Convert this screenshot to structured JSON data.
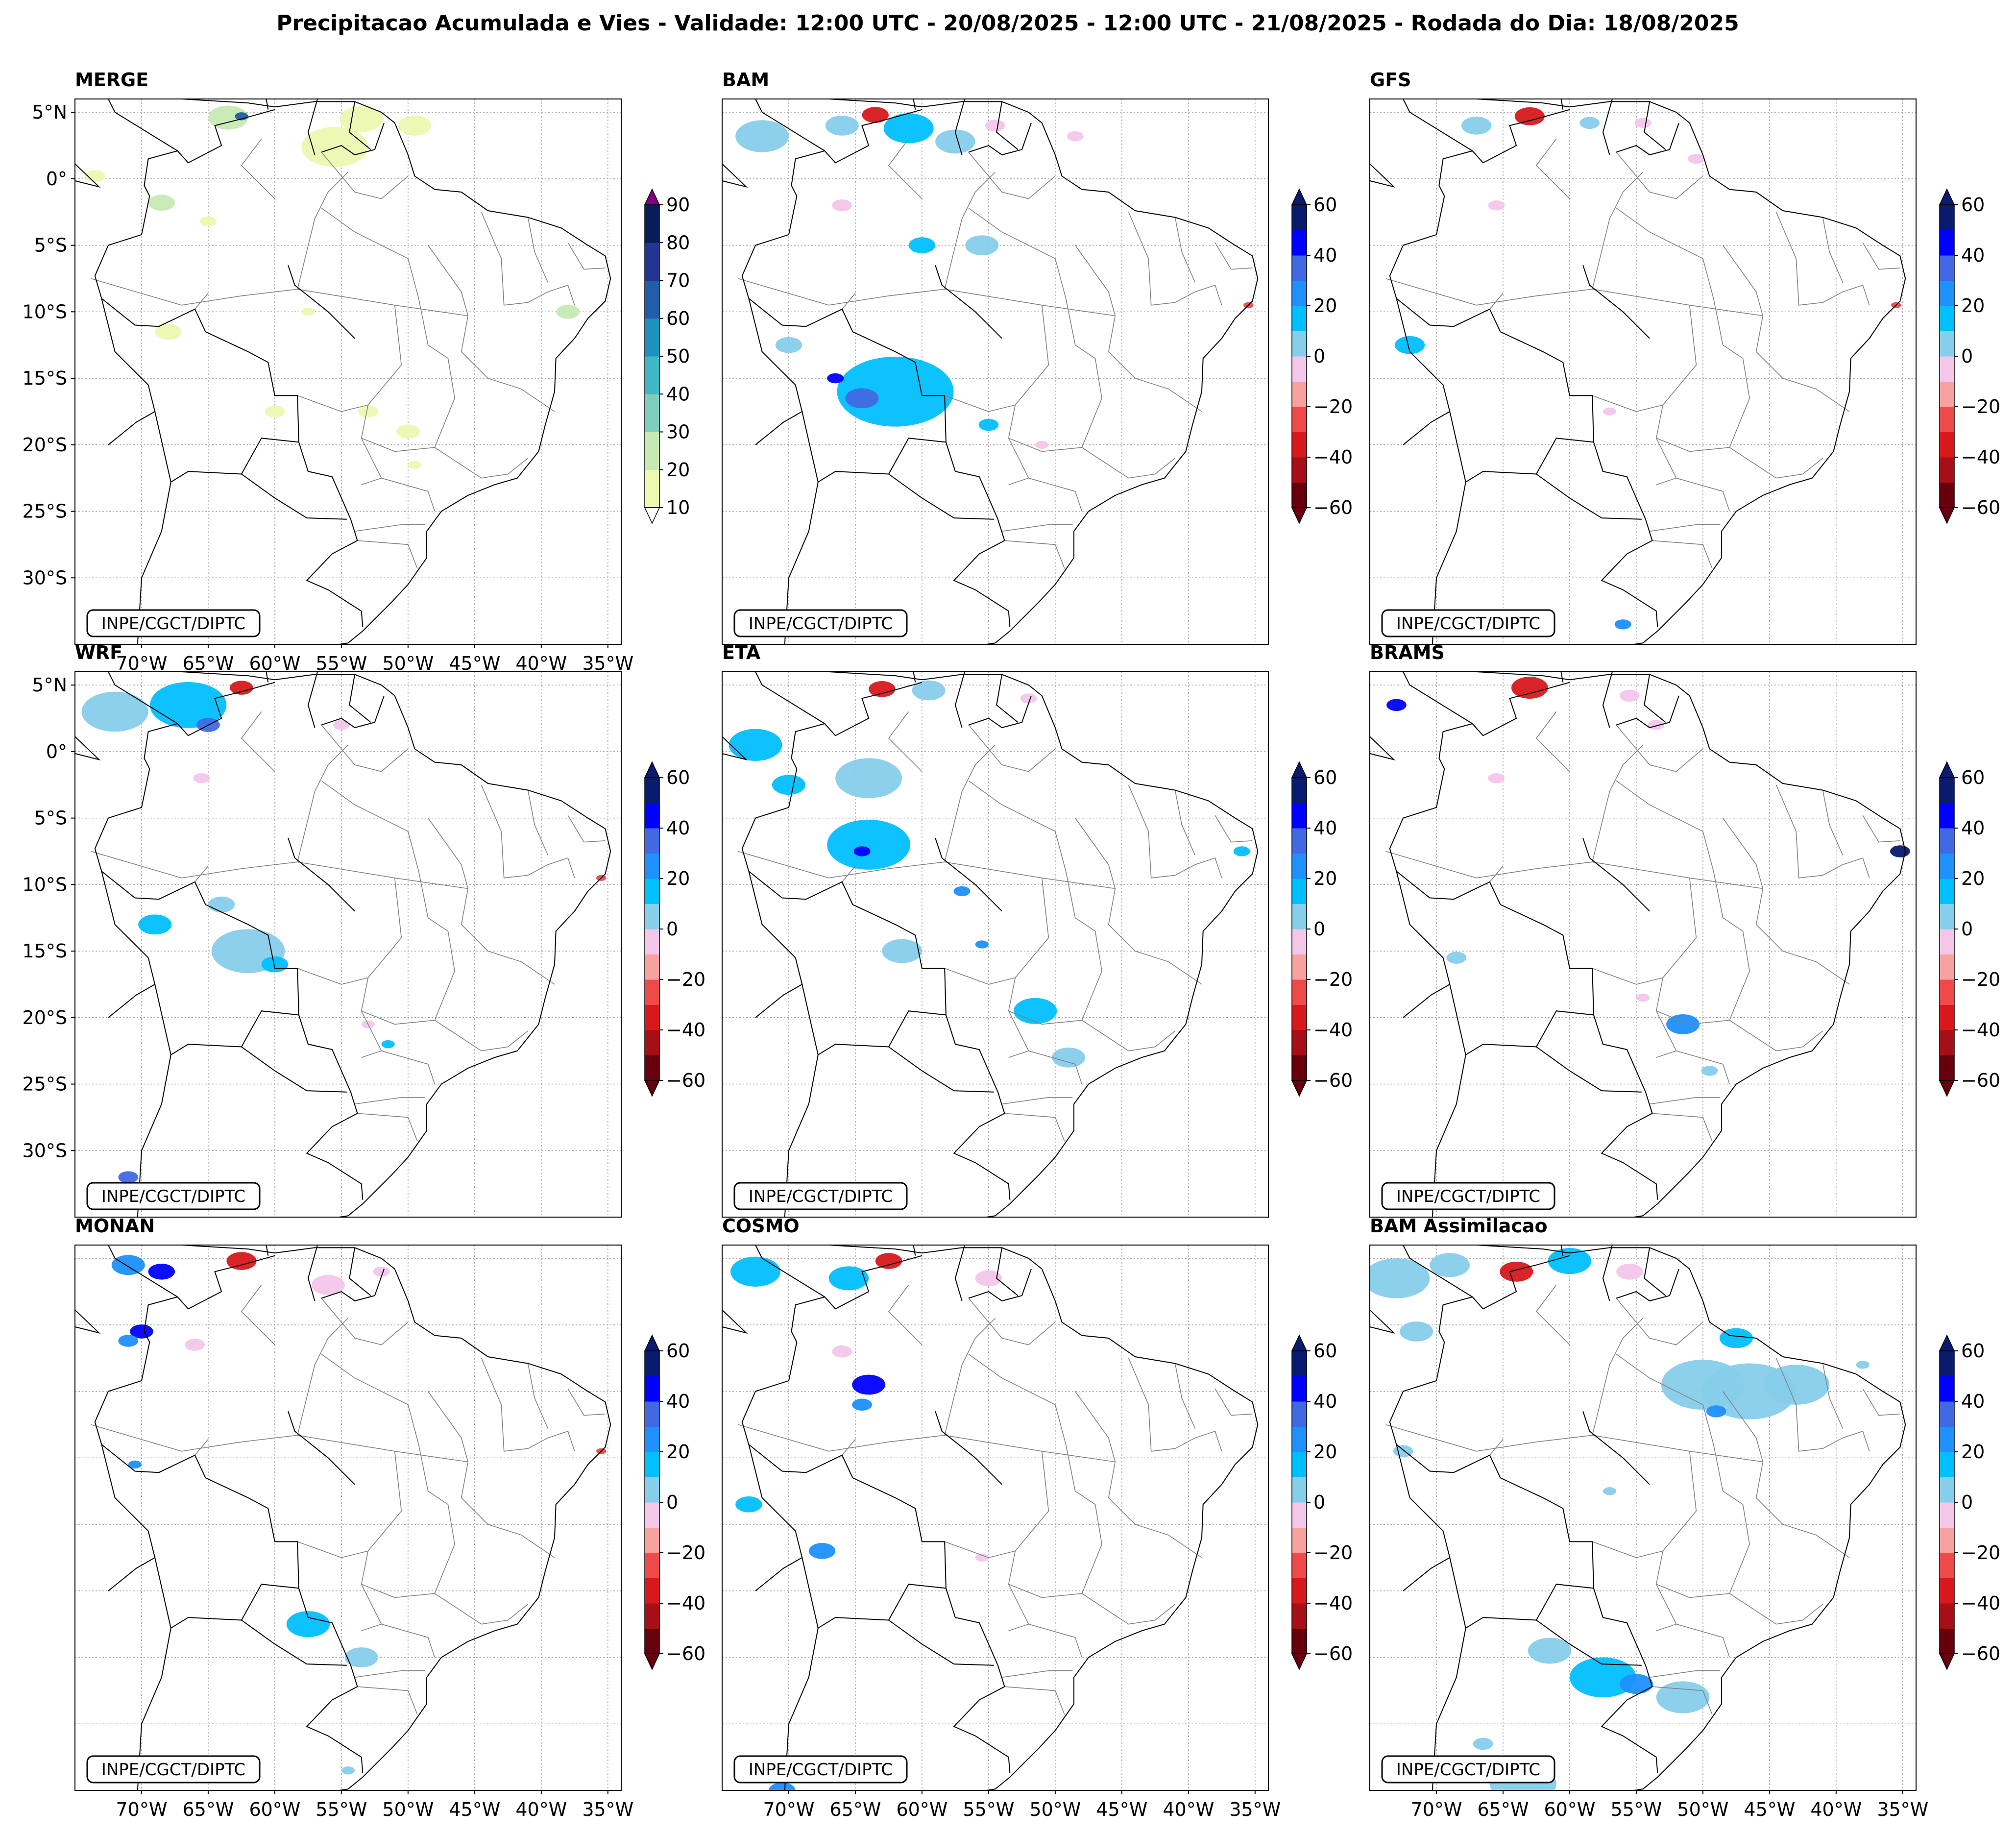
{
  "figure_title": "Precipitacao Acumulada e Vies - Validade: 12:00 UTC - 20/08/2025 - 12:00 UTC - 21/08/2025 - Rodada do Dia: 18/08/2025",
  "credit": "INPE/CGCT/DIPTC",
  "colors": {
    "outline": "#000000",
    "state_lines": "#808080",
    "grid": "#a0a0a0",
    "merge_levels": [
      "#edf8b1",
      "#c7e9b4",
      "#7fcdbb",
      "#41b6c4",
      "#1d91c0",
      "#225ea8",
      "#253494",
      "#081d58",
      "#800080"
    ],
    "bias_levels": [
      "#67000d",
      "#a50f15",
      "#d7191c",
      "#ef4a4a",
      "#f7a1a1",
      "#f3c6ea",
      "#ffffff",
      "#ffffff",
      "#87ceeb",
      "#00bfff",
      "#1e90ff",
      "#4169e1",
      "#0000ff",
      "#0a1a6e"
    ]
  },
  "chart_data": [
    {
      "type": "contourf",
      "model": "MERGE",
      "title": "MERGE",
      "colorbar": {
        "ticks": [
          "10",
          "20",
          "30",
          "40",
          "50",
          "60",
          "70",
          "80",
          "90"
        ],
        "min": 10,
        "max": 90,
        "extend": "both"
      },
      "lon_ticks": [
        "70°W",
        "65°W",
        "60°W",
        "55°W",
        "50°W",
        "45°W",
        "40°W",
        "35°W"
      ],
      "lat_ticks": [
        "5°N",
        "0°",
        "5°S",
        "10°S",
        "15°S",
        "20°S",
        "25°S",
        "30°S"
      ],
      "xlim": [
        -75,
        -34
      ],
      "ylim": [
        -35,
        6
      ],
      "blobs": [
        {
          "lon": -63.5,
          "lat": 4.6,
          "r": 1.2,
          "level": 1
        },
        {
          "lon": -62.5,
          "lat": 4.7,
          "r": 0.4,
          "level": 5
        },
        {
          "lon": -53.5,
          "lat": 4.5,
          "r": 1.3,
          "level": 0
        },
        {
          "lon": -55.5,
          "lat": 2.4,
          "r": 2.0,
          "level": 0
        },
        {
          "lon": -49.5,
          "lat": 4.0,
          "r": 1.0,
          "level": 0
        },
        {
          "lon": -73.5,
          "lat": 0.2,
          "r": 0.6,
          "level": 0
        },
        {
          "lon": -68.5,
          "lat": -1.8,
          "r": 0.8,
          "level": 1
        },
        {
          "lon": -65.0,
          "lat": -3.2,
          "r": 0.5,
          "level": 0
        },
        {
          "lon": -38.0,
          "lat": -10.0,
          "r": 0.7,
          "level": 1
        },
        {
          "lon": -68.0,
          "lat": -11.5,
          "r": 0.8,
          "level": 0
        },
        {
          "lon": -57.5,
          "lat": -10.0,
          "r": 0.4,
          "level": 0
        },
        {
          "lon": -60.0,
          "lat": -17.5,
          "r": 0.6,
          "level": 0
        },
        {
          "lon": -53.0,
          "lat": -17.5,
          "r": 0.6,
          "level": 0
        },
        {
          "lon": -50.0,
          "lat": -19.0,
          "r": 0.7,
          "level": 0
        },
        {
          "lon": -49.5,
          "lat": -21.5,
          "r": 0.4,
          "level": 0
        }
      ]
    },
    {
      "type": "contourf",
      "model": "BAM",
      "title": "BAM",
      "colorbar": {
        "ticks": [
          "60",
          "40",
          "20",
          "0",
          "−20",
          "−40",
          "−60"
        ],
        "min": -60,
        "max": 60,
        "extend": "both"
      },
      "lon_ticks": [],
      "lat_ticks": [],
      "xlim": [
        -75,
        -34
      ],
      "ylim": [
        -35,
        6
      ],
      "blobs": [
        {
          "lon": -72.0,
          "lat": 3.2,
          "r": 1.6,
          "level": 8
        },
        {
          "lon": -66.0,
          "lat": 4.0,
          "r": 1.0,
          "level": 8
        },
        {
          "lon": -61.0,
          "lat": 3.8,
          "r": 1.5,
          "level": 9
        },
        {
          "lon": -63.5,
          "lat": 4.8,
          "r": 0.8,
          "level": 2
        },
        {
          "lon": -57.5,
          "lat": 2.8,
          "r": 1.2,
          "level": 8
        },
        {
          "lon": -54.5,
          "lat": 4.0,
          "r": 0.6,
          "level": 5
        },
        {
          "lon": -48.5,
          "lat": 3.2,
          "r": 0.5,
          "level": 5
        },
        {
          "lon": -66.0,
          "lat": -2.0,
          "r": 0.6,
          "level": 5
        },
        {
          "lon": -60.0,
          "lat": -5.0,
          "r": 0.8,
          "level": 9
        },
        {
          "lon": -55.5,
          "lat": -5.0,
          "r": 1.0,
          "level": 8
        },
        {
          "lon": -62.0,
          "lat": -16.0,
          "r": 3.5,
          "level": 9
        },
        {
          "lon": -64.5,
          "lat": -16.5,
          "r": 1.0,
          "level": 11
        },
        {
          "lon": -66.5,
          "lat": -15.0,
          "r": 0.5,
          "level": 12
        },
        {
          "lon": -70.0,
          "lat": -12.5,
          "r": 0.8,
          "level": 8
        },
        {
          "lon": -55.0,
          "lat": -18.5,
          "r": 0.6,
          "level": 9
        },
        {
          "lon": -51.0,
          "lat": -20.0,
          "r": 0.4,
          "level": 5
        },
        {
          "lon": -35.5,
          "lat": -9.5,
          "r": 0.3,
          "level": 3
        }
      ]
    },
    {
      "type": "contourf",
      "model": "GFS",
      "title": "GFS",
      "colorbar": {
        "ticks": [
          "60",
          "40",
          "20",
          "0",
          "−20",
          "−40",
          "−60"
        ],
        "min": -60,
        "max": 60,
        "extend": "both"
      },
      "lon_ticks": [],
      "lat_ticks": [],
      "xlim": [
        -75,
        -34
      ],
      "ylim": [
        -35,
        6
      ],
      "blobs": [
        {
          "lon": -63.0,
          "lat": 4.7,
          "r": 0.9,
          "level": 2
        },
        {
          "lon": -67.0,
          "lat": 4.0,
          "r": 0.9,
          "level": 8
        },
        {
          "lon": -58.5,
          "lat": 4.2,
          "r": 0.6,
          "level": 8
        },
        {
          "lon": -54.5,
          "lat": 4.2,
          "r": 0.5,
          "level": 5
        },
        {
          "lon": -50.5,
          "lat": 1.5,
          "r": 0.5,
          "level": 5
        },
        {
          "lon": -65.5,
          "lat": -2.0,
          "r": 0.5,
          "level": 5
        },
        {
          "lon": -72.0,
          "lat": -12.5,
          "r": 0.9,
          "level": 9
        },
        {
          "lon": -57.0,
          "lat": -17.5,
          "r": 0.4,
          "level": 5
        },
        {
          "lon": -56.0,
          "lat": -33.5,
          "r": 0.5,
          "level": 10
        },
        {
          "lon": -35.5,
          "lat": -9.5,
          "r": 0.3,
          "level": 3
        }
      ]
    },
    {
      "type": "contourf",
      "model": "WRF",
      "title": "WRF",
      "colorbar": {
        "ticks": [
          "60",
          "40",
          "20",
          "0",
          "−20",
          "−40",
          "−60"
        ],
        "min": -60,
        "max": 60,
        "extend": "both"
      },
      "lon_ticks": [],
      "lat_ticks": [
        "5°N",
        "0°",
        "5°S",
        "10°S",
        "15°S",
        "20°S",
        "25°S",
        "30°S"
      ],
      "xlim": [
        -75,
        -34
      ],
      "ylim": [
        -35,
        6
      ],
      "blobs": [
        {
          "lon": -72.0,
          "lat": 3.0,
          "r": 2.0,
          "level": 8
        },
        {
          "lon": -66.5,
          "lat": 3.5,
          "r": 2.3,
          "level": 9
        },
        {
          "lon": -65.0,
          "lat": 2.0,
          "r": 0.7,
          "level": 11
        },
        {
          "lon": -62.5,
          "lat": 4.8,
          "r": 0.7,
          "level": 2
        },
        {
          "lon": -55.0,
          "lat": 2.0,
          "r": 0.5,
          "level": 5
        },
        {
          "lon": -65.5,
          "lat": -2.0,
          "r": 0.5,
          "level": 5
        },
        {
          "lon": -64.0,
          "lat": -11.5,
          "r": 0.8,
          "level": 8
        },
        {
          "lon": -69.0,
          "lat": -13.0,
          "r": 1.0,
          "level": 9
        },
        {
          "lon": -62.0,
          "lat": -15.0,
          "r": 2.2,
          "level": 8
        },
        {
          "lon": -60.0,
          "lat": -16.0,
          "r": 0.8,
          "level": 9
        },
        {
          "lon": -53.0,
          "lat": -20.5,
          "r": 0.4,
          "level": 5
        },
        {
          "lon": -51.5,
          "lat": -22.0,
          "r": 0.4,
          "level": 9
        },
        {
          "lon": -35.5,
          "lat": -9.5,
          "r": 0.3,
          "level": 3
        },
        {
          "lon": -71.0,
          "lat": -32.0,
          "r": 0.6,
          "level": 11
        }
      ]
    },
    {
      "type": "contourf",
      "model": "ETA",
      "title": "ETA",
      "colorbar": {
        "ticks": [
          "60",
          "40",
          "20",
          "0",
          "−20",
          "−40",
          "−60"
        ],
        "min": -60,
        "max": 60,
        "extend": "both"
      },
      "lon_ticks": [],
      "lat_ticks": [],
      "xlim": [
        -75,
        -34
      ],
      "ylim": [
        -35,
        6
      ],
      "blobs": [
        {
          "lon": -72.5,
          "lat": 0.5,
          "r": 1.6,
          "level": 9
        },
        {
          "lon": -64.0,
          "lat": -2.0,
          "r": 2.0,
          "level": 8
        },
        {
          "lon": -64.0,
          "lat": -7.0,
          "r": 2.5,
          "level": 9
        },
        {
          "lon": -64.5,
          "lat": -7.5,
          "r": 0.5,
          "level": 12
        },
        {
          "lon": -70.0,
          "lat": -2.5,
          "r": 1.0,
          "level": 9
        },
        {
          "lon": -59.5,
          "lat": 4.6,
          "r": 1.0,
          "level": 8
        },
        {
          "lon": -63.0,
          "lat": 4.7,
          "r": 0.8,
          "level": 2
        },
        {
          "lon": -52.0,
          "lat": 4.0,
          "r": 0.5,
          "level": 5
        },
        {
          "lon": -57.0,
          "lat": -10.5,
          "r": 0.5,
          "level": 10
        },
        {
          "lon": -61.5,
          "lat": -15.0,
          "r": 1.2,
          "level": 8
        },
        {
          "lon": -55.5,
          "lat": -14.5,
          "r": 0.4,
          "level": 10
        },
        {
          "lon": -51.5,
          "lat": -19.5,
          "r": 1.3,
          "level": 9
        },
        {
          "lon": -49.0,
          "lat": -23.0,
          "r": 1.0,
          "level": 8
        },
        {
          "lon": -36.0,
          "lat": -7.5,
          "r": 0.5,
          "level": 9
        }
      ]
    },
    {
      "type": "contourf",
      "model": "BRAMS",
      "title": "BRAMS",
      "colorbar": {
        "ticks": [
          "60",
          "40",
          "20",
          "0",
          "−20",
          "−40",
          "−60"
        ],
        "min": -60,
        "max": 60,
        "extend": "both"
      },
      "lon_ticks": [],
      "lat_ticks": [],
      "xlim": [
        -75,
        -34
      ],
      "ylim": [
        -35,
        6
      ],
      "blobs": [
        {
          "lon": -73.0,
          "lat": 3.5,
          "r": 0.6,
          "level": 12
        },
        {
          "lon": -63.0,
          "lat": 4.8,
          "r": 1.1,
          "level": 2
        },
        {
          "lon": -55.5,
          "lat": 4.2,
          "r": 0.6,
          "level": 5
        },
        {
          "lon": -53.5,
          "lat": 2.0,
          "r": 0.5,
          "level": 5
        },
        {
          "lon": -65.5,
          "lat": -2.0,
          "r": 0.5,
          "level": 5
        },
        {
          "lon": -35.2,
          "lat": -7.5,
          "r": 0.6,
          "level": 13
        },
        {
          "lon": -68.5,
          "lat": -15.5,
          "r": 0.6,
          "level": 8
        },
        {
          "lon": -54.5,
          "lat": -18.5,
          "r": 0.4,
          "level": 5
        },
        {
          "lon": -51.5,
          "lat": -20.5,
          "r": 1.0,
          "level": 10
        },
        {
          "lon": -49.5,
          "lat": -24.0,
          "r": 0.5,
          "level": 8
        }
      ]
    },
    {
      "type": "contourf",
      "model": "MONAN",
      "title": "MONAN",
      "colorbar": {
        "ticks": [
          "60",
          "40",
          "20",
          "0",
          "−20",
          "−40",
          "−60"
        ],
        "min": -60,
        "max": 60,
        "extend": "both"
      },
      "lon_ticks": [
        "70°W",
        "65°W",
        "60°W",
        "55°W",
        "50°W",
        "45°W",
        "40°W",
        "35°W"
      ],
      "lat_ticks": [],
      "xlim": [
        -75,
        -34
      ],
      "ylim": [
        -35,
        6
      ],
      "blobs": [
        {
          "lon": -71.0,
          "lat": 4.5,
          "r": 1.0,
          "level": 10
        },
        {
          "lon": -68.5,
          "lat": 4.0,
          "r": 0.8,
          "level": 12
        },
        {
          "lon": -62.5,
          "lat": 4.8,
          "r": 0.9,
          "level": 2
        },
        {
          "lon": -56.0,
          "lat": 3.0,
          "r": 1.0,
          "level": 5
        },
        {
          "lon": -52.0,
          "lat": 4.0,
          "r": 0.5,
          "level": 5
        },
        {
          "lon": -70.0,
          "lat": -0.5,
          "r": 0.7,
          "level": 12
        },
        {
          "lon": -71.0,
          "lat": -1.2,
          "r": 0.6,
          "level": 10
        },
        {
          "lon": -66.0,
          "lat": -1.5,
          "r": 0.6,
          "level": 5
        },
        {
          "lon": -70.5,
          "lat": -10.5,
          "r": 0.4,
          "level": 10
        },
        {
          "lon": -57.5,
          "lat": -22.5,
          "r": 1.3,
          "level": 9
        },
        {
          "lon": -53.5,
          "lat": -25.0,
          "r": 1.0,
          "level": 8
        },
        {
          "lon": -54.5,
          "lat": -33.5,
          "r": 0.4,
          "level": 8
        },
        {
          "lon": -35.5,
          "lat": -9.5,
          "r": 0.3,
          "level": 3
        }
      ]
    },
    {
      "type": "contourf",
      "model": "COSMO",
      "title": "COSMO",
      "colorbar": {
        "ticks": [
          "60",
          "40",
          "20",
          "0",
          "−20",
          "−40",
          "−60"
        ],
        "min": -60,
        "max": 60,
        "extend": "both"
      },
      "lon_ticks": [
        "70°W",
        "65°W",
        "60°W",
        "55°W",
        "50°W",
        "45°W",
        "40°W",
        "35°W"
      ],
      "lat_ticks": [],
      "xlim": [
        -75,
        -34
      ],
      "ylim": [
        -35,
        6
      ],
      "blobs": [
        {
          "lon": -72.5,
          "lat": 4.0,
          "r": 1.5,
          "level": 9
        },
        {
          "lon": -65.5,
          "lat": 3.5,
          "r": 1.2,
          "level": 9
        },
        {
          "lon": -62.5,
          "lat": 4.8,
          "r": 0.8,
          "level": 2
        },
        {
          "lon": -55.0,
          "lat": 3.5,
          "r": 0.8,
          "level": 5
        },
        {
          "lon": -66.0,
          "lat": -2.0,
          "r": 0.6,
          "level": 5
        },
        {
          "lon": -64.0,
          "lat": -4.5,
          "r": 1.0,
          "level": 12
        },
        {
          "lon": -64.5,
          "lat": -6.0,
          "r": 0.6,
          "level": 10
        },
        {
          "lon": -73.0,
          "lat": -13.5,
          "r": 0.8,
          "level": 9
        },
        {
          "lon": -67.5,
          "lat": -17.0,
          "r": 0.8,
          "level": 10
        },
        {
          "lon": -55.5,
          "lat": -17.5,
          "r": 0.4,
          "level": 5
        },
        {
          "lon": -70.5,
          "lat": -35.0,
          "r": 0.8,
          "level": 10
        }
      ]
    },
    {
      "type": "contourf",
      "model": "BAM Assimilacao",
      "title": "BAM Assimilacao",
      "colorbar": {
        "ticks": [
          "60",
          "40",
          "20",
          "0",
          "−20",
          "−40",
          "−60"
        ],
        "min": -60,
        "max": 60,
        "extend": "both"
      },
      "lon_ticks": [
        "70°W",
        "65°W",
        "60°W",
        "55°W",
        "50°W",
        "45°W",
        "40°W",
        "35°W"
      ],
      "lat_ticks": [],
      "xlim": [
        -75,
        -34
      ],
      "ylim": [
        -35,
        6
      ],
      "blobs": [
        {
          "lon": -73.0,
          "lat": 3.5,
          "r": 2.0,
          "level": 8
        },
        {
          "lon": -69.0,
          "lat": 4.5,
          "r": 1.2,
          "level": 8
        },
        {
          "lon": -64.0,
          "lat": 4.0,
          "r": 1.0,
          "level": 2
        },
        {
          "lon": -60.0,
          "lat": 4.8,
          "r": 1.3,
          "level": 9
        },
        {
          "lon": -55.5,
          "lat": 4.0,
          "r": 0.8,
          "level": 5
        },
        {
          "lon": -71.5,
          "lat": -0.5,
          "r": 1.0,
          "level": 8
        },
        {
          "lon": -50.0,
          "lat": -4.5,
          "r": 2.5,
          "level": 8
        },
        {
          "lon": -46.5,
          "lat": -5.0,
          "r": 2.8,
          "level": 8
        },
        {
          "lon": -43.0,
          "lat": -4.5,
          "r": 2.0,
          "level": 8
        },
        {
          "lon": -47.5,
          "lat": -1.0,
          "r": 1.0,
          "level": 9
        },
        {
          "lon": -49.0,
          "lat": -6.5,
          "r": 0.6,
          "level": 10
        },
        {
          "lon": -61.5,
          "lat": -24.5,
          "r": 1.3,
          "level": 8
        },
        {
          "lon": -57.5,
          "lat": -26.5,
          "r": 2.0,
          "level": 9
        },
        {
          "lon": -55.0,
          "lat": -27.0,
          "r": 1.0,
          "level": 10
        },
        {
          "lon": -51.5,
          "lat": -28.0,
          "r": 1.6,
          "level": 8
        },
        {
          "lon": -66.5,
          "lat": -31.5,
          "r": 0.6,
          "level": 8
        },
        {
          "lon": -63.5,
          "lat": -34.5,
          "r": 2.0,
          "level": 8
        },
        {
          "lon": -72.5,
          "lat": -9.5,
          "r": 0.6,
          "level": 8
        },
        {
          "lon": -57.0,
          "lat": -12.5,
          "r": 0.4,
          "level": 8
        },
        {
          "lon": -38.0,
          "lat": -3.0,
          "r": 0.4,
          "level": 8
        }
      ]
    }
  ]
}
